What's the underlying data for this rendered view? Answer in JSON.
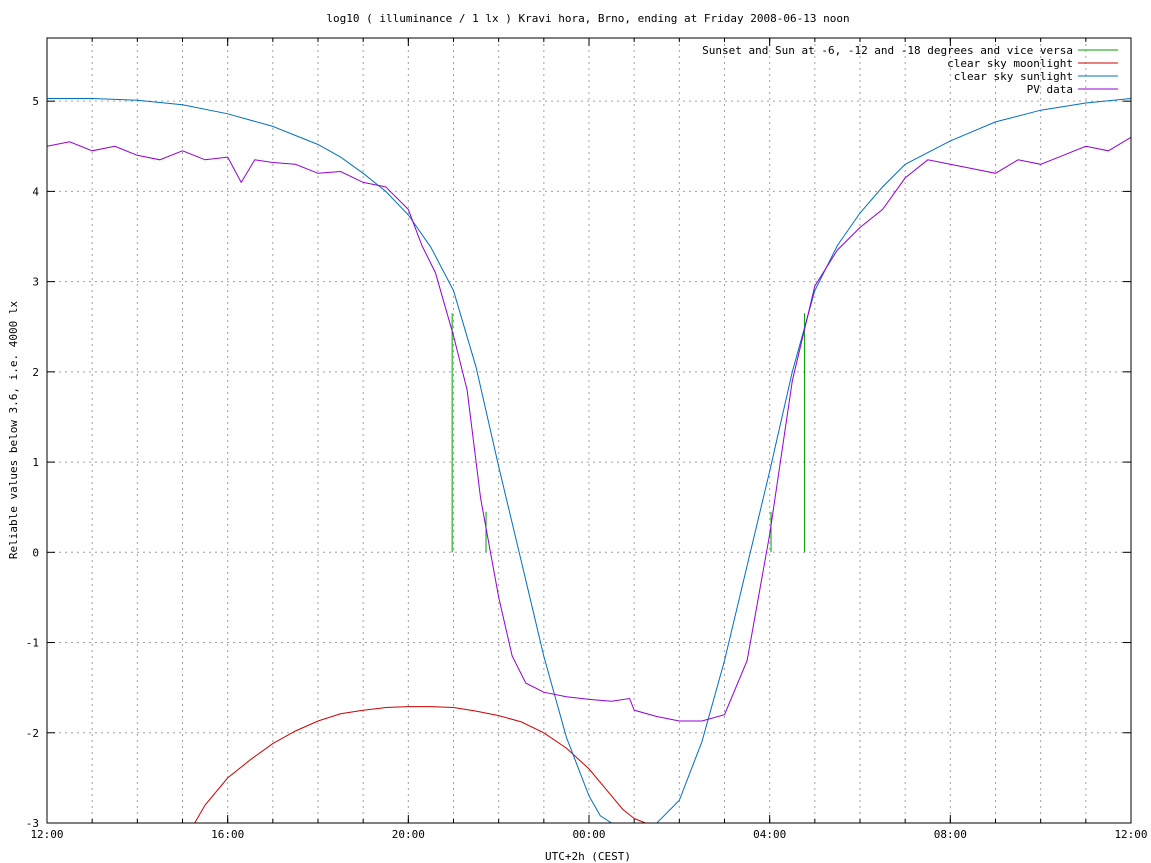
{
  "chart_data": {
    "type": "line",
    "title": "log10 ( illuminance / 1 lx ) Kravi hora, Brno, ending at Friday 2008-06-13 noon",
    "xlabel": "UTC+2h (CEST)",
    "ylabel": "Reliable values below 3.6, i.e. 4000 lx",
    "xlim": [
      12,
      36
    ],
    "ylim": [
      -3,
      5.7
    ],
    "grid": true,
    "legend_position": "top-right",
    "x_ticks": [
      {
        "v": 12,
        "label": "12:00"
      },
      {
        "v": 16,
        "label": "16:00"
      },
      {
        "v": 20,
        "label": "20:00"
      },
      {
        "v": 24,
        "label": "00:00"
      },
      {
        "v": 28,
        "label": "04:00"
      },
      {
        "v": 32,
        "label": "08:00"
      },
      {
        "v": 36,
        "label": "12:00"
      }
    ],
    "y_ticks": [
      {
        "v": -3,
        "label": "-3"
      },
      {
        "v": -2,
        "label": "-2"
      },
      {
        "v": -1,
        "label": "-1"
      },
      {
        "v": 0,
        "label": "0"
      },
      {
        "v": 1,
        "label": "1"
      },
      {
        "v": 2,
        "label": "2"
      },
      {
        "v": 3,
        "label": "3"
      },
      {
        "v": 4,
        "label": "4"
      },
      {
        "v": 5,
        "label": "5"
      }
    ],
    "series": [
      {
        "name": "Sunset and Sun at -6, -12 and -18 degrees and vice versa",
        "color": "#00a000",
        "kind": "impulses",
        "x": [
          20.97,
          21.72,
          22.68,
          27.03,
          28.03,
          28.77
        ],
        "y": [
          2.65,
          0.45,
          0.0,
          0.0,
          0.45,
          2.65
        ]
      },
      {
        "name": "clear sky moonlight",
        "color": "#d00000",
        "kind": "line",
        "x": [
          15.27,
          15.5,
          16.0,
          16.5,
          17.0,
          17.5,
          18.0,
          18.5,
          19.0,
          19.5,
          20.0,
          20.5,
          21.0,
          21.5,
          22.0,
          22.5,
          23.0,
          23.5,
          24.0,
          24.5,
          24.75,
          25.0,
          25.25
        ],
        "y": [
          -3.0,
          -2.8,
          -2.5,
          -2.3,
          -2.12,
          -1.98,
          -1.87,
          -1.79,
          -1.75,
          -1.72,
          -1.71,
          -1.71,
          -1.72,
          -1.76,
          -1.81,
          -1.88,
          -2.0,
          -2.17,
          -2.4,
          -2.7,
          -2.85,
          -2.95,
          -3.0
        ]
      },
      {
        "name": "clear sky sunlight",
        "color": "#0070c0",
        "kind": "line",
        "x": [
          12.0,
          13.0,
          14.0,
          15.0,
          16.0,
          17.0,
          18.0,
          18.5,
          19.0,
          19.5,
          20.0,
          20.5,
          21.0,
          21.5,
          22.0,
          22.5,
          23.0,
          23.5,
          24.0,
          24.25,
          24.5,
          25.5,
          26.0,
          26.5,
          27.0,
          27.5,
          28.0,
          28.5,
          29.0,
          29.5,
          30.0,
          30.5,
          31.0,
          32.0,
          33.0,
          34.0,
          35.0,
          36.0
        ],
        "y": [
          5.03,
          5.03,
          5.01,
          4.96,
          4.86,
          4.72,
          4.52,
          4.38,
          4.2,
          4.0,
          3.74,
          3.38,
          2.9,
          2.05,
          0.95,
          -0.1,
          -1.15,
          -2.05,
          -2.7,
          -2.92,
          -3.0,
          -3.0,
          -2.75,
          -2.1,
          -1.2,
          -0.15,
          0.9,
          2.0,
          2.9,
          3.4,
          3.76,
          4.05,
          4.3,
          4.56,
          4.77,
          4.9,
          4.98,
          5.03
        ]
      },
      {
        "name": "PV data",
        "color": "#9400d3",
        "kind": "line",
        "x": [
          12.0,
          12.5,
          13.0,
          13.5,
          14.0,
          14.5,
          15.0,
          15.5,
          16.0,
          16.3,
          16.6,
          17.0,
          17.5,
          18.0,
          18.5,
          19.0,
          19.5,
          20.0,
          20.3,
          20.6,
          21.0,
          21.3,
          21.6,
          22.0,
          22.3,
          22.6,
          23.0,
          23.5,
          24.0,
          24.5,
          24.9,
          25.0,
          25.5,
          26.0,
          26.5,
          27.0,
          27.5,
          28.0,
          28.5,
          29.0,
          29.5,
          30.0,
          30.5,
          31.0,
          31.5,
          32.0,
          32.5,
          33.0,
          33.5,
          34.0,
          34.5,
          35.0,
          35.5,
          36.0
        ],
        "y": [
          4.5,
          4.55,
          4.45,
          4.5,
          4.4,
          4.35,
          4.45,
          4.35,
          4.38,
          4.1,
          4.35,
          4.32,
          4.3,
          4.2,
          4.22,
          4.1,
          4.05,
          3.8,
          3.4,
          3.1,
          2.4,
          1.8,
          0.6,
          -0.5,
          -1.15,
          -1.45,
          -1.55,
          -1.6,
          -1.63,
          -1.65,
          -1.62,
          -1.75,
          -1.82,
          -1.87,
          -1.87,
          -1.8,
          -1.2,
          0.2,
          1.9,
          2.95,
          3.35,
          3.6,
          3.8,
          4.15,
          4.35,
          4.3,
          4.25,
          4.2,
          4.35,
          4.3,
          4.4,
          4.5,
          4.45,
          4.6
        ]
      }
    ]
  }
}
